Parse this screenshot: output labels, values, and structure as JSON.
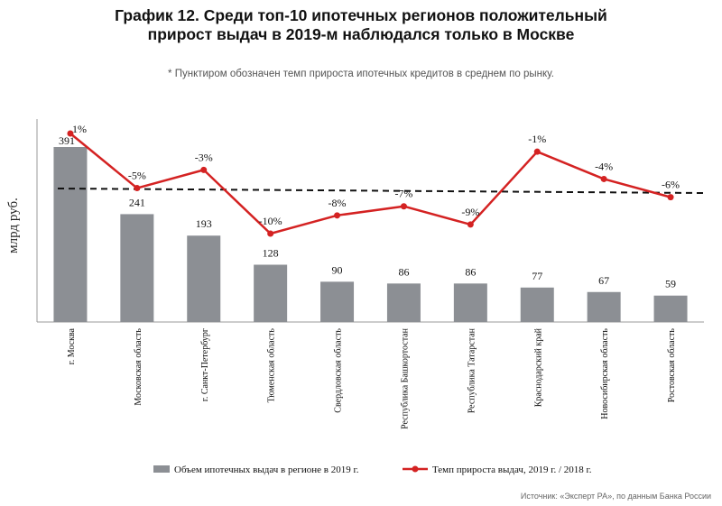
{
  "header": {
    "title_line1": "График 12. Среди топ-10 ипотечных регионов положительный",
    "title_line2": "прирост выдач в 2019-м наблюдался только в Москве",
    "note": "* Пунктиром обозначен темп прироста ипотечных кредитов в среднем по рынку."
  },
  "footer": {
    "source": "Источник: «Эксперт РА», по данным Банка России"
  },
  "colors": {
    "bar": "#8c8f94",
    "line": "#d42222",
    "average": "#111111",
    "axis": "#999999"
  },
  "chart_data": {
    "type": "bar",
    "ylabel": "млрд руб.",
    "categories": [
      "г. Москва",
      "Московская область",
      "г. Санкт-Петербург",
      "Тюменская область",
      "Свердловская область",
      "Республика Башкортостан",
      "Республика Татарстан",
      "Краснодарский край",
      "Новосибирская область",
      "Ростовская область"
    ],
    "series": [
      {
        "name": "Объем ипотечных выдач в регионе в 2019 г.",
        "type": "bar",
        "values": [
          391,
          241,
          193,
          128,
          90,
          86,
          86,
          77,
          67,
          59
        ],
        "labels": [
          "391",
          "241",
          "193",
          "128",
          "90",
          "86",
          "86",
          "77",
          "67",
          "59"
        ]
      },
      {
        "name": "Темп прироста выдач, 2019 г. / 2018 г.",
        "type": "line",
        "values": [
          1,
          -5,
          -3,
          -10,
          -8,
          -7,
          -9,
          -1,
          -4,
          -6
        ],
        "labels": [
          "1%",
          "-5%",
          "-3%",
          "-10%",
          "-8%",
          "-7%",
          "-9%",
          "-1%",
          "-4%",
          "-6%"
        ]
      }
    ],
    "average_growth": -5.5,
    "ylim": [
      0,
      391
    ],
    "growth_range": [
      -11,
      2
    ],
    "legend_position": "bottom"
  }
}
